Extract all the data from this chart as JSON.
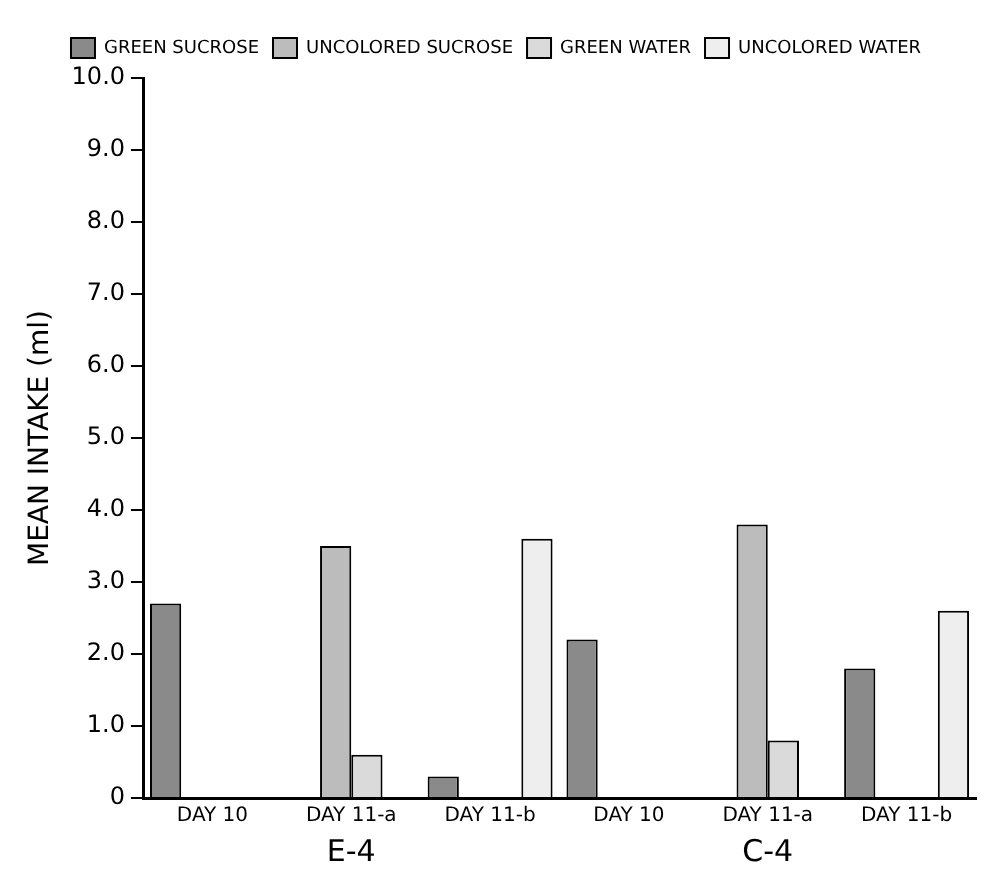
{
  "chart_data": {
    "type": "bar",
    "ylabel": "MEAN INTAKE (ml)",
    "categories": [
      "DAY 10",
      "DAY 11-a",
      "DAY 11-b",
      "DAY 10",
      "DAY 11-a",
      "DAY 11-b"
    ],
    "series": [
      {
        "name": "GREEN SUCROSE",
        "color": "#8a8a8a",
        "values": [
          2.7,
          null,
          0.3,
          2.2,
          null,
          1.8
        ]
      },
      {
        "name": "UNCOLORED SUCROSE",
        "color": "#bcbcbc",
        "values": [
          null,
          3.5,
          null,
          null,
          3.8,
          null
        ]
      },
      {
        "name": "GREEN WATER",
        "color": "#dadada",
        "values": [
          null,
          0.6,
          null,
          null,
          0.8,
          null
        ]
      },
      {
        "name": "UNCOLORED WATER",
        "color": "#eeeeee",
        "values": [
          null,
          null,
          3.6,
          null,
          null,
          2.6
        ]
      }
    ],
    "ylim": [
      0,
      10
    ],
    "yticks": [
      0,
      {
        "value": 1,
        "label": "1.0"
      },
      {
        "value": 2,
        "label": "2.0"
      },
      {
        "value": 3,
        "label": "3.0"
      },
      {
        "value": 4,
        "label": "4.0"
      },
      {
        "value": 5,
        "label": "5.0"
      },
      {
        "value": 6,
        "label": "6.0"
      },
      {
        "value": 7,
        "label": "7.0"
      },
      {
        "value": 8,
        "label": "8.0"
      },
      {
        "value": 9,
        "label": "9.0"
      },
      {
        "value": 10,
        "label": "10.0"
      }
    ],
    "annotations": [
      "E-4",
      "C-4"
    ],
    "legend": "top",
    "grid": false
  }
}
